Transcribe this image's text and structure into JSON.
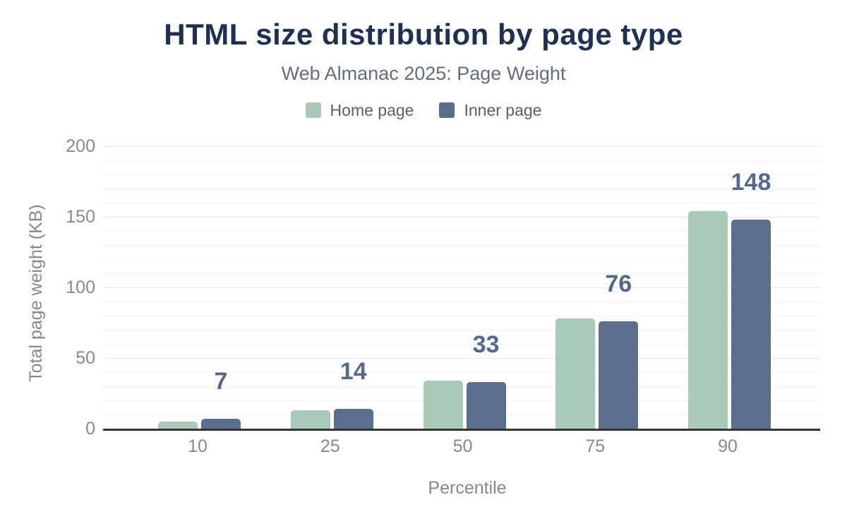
{
  "chart_data": {
    "type": "bar",
    "title": "HTML size distribution by page type",
    "subtitle": "Web Almanac 2025: Page Weight",
    "xlabel": "Percentile",
    "ylabel": "Total page weight (KB)",
    "categories": [
      "10",
      "25",
      "50",
      "75",
      "90"
    ],
    "series": [
      {
        "name": "Home page",
        "color": "#a8c9b7",
        "values": [
          5,
          13,
          34,
          78,
          154
        ]
      },
      {
        "name": "Inner page",
        "color": "#5c6e8e",
        "values": [
          7,
          14,
          33,
          76,
          148
        ]
      }
    ],
    "bar_labels": {
      "series": "Inner page",
      "values": [
        "7",
        "14",
        "33",
        "76",
        "148"
      ],
      "color": "#56688c"
    },
    "ylim": [
      0,
      200
    ],
    "yticks": [
      "0",
      "50",
      "100",
      "150",
      "200"
    ],
    "grid": {
      "minor_step": 10,
      "major_step": 50,
      "visible": true
    },
    "legend_position": "top",
    "theme": {
      "title_color": "#1f3050",
      "subtitle_color": "#646e7a",
      "legend_text_color": "#58606c",
      "axis_text_color": "#85898f",
      "axis_line_color": "#343434",
      "background": "#ffffff"
    }
  }
}
